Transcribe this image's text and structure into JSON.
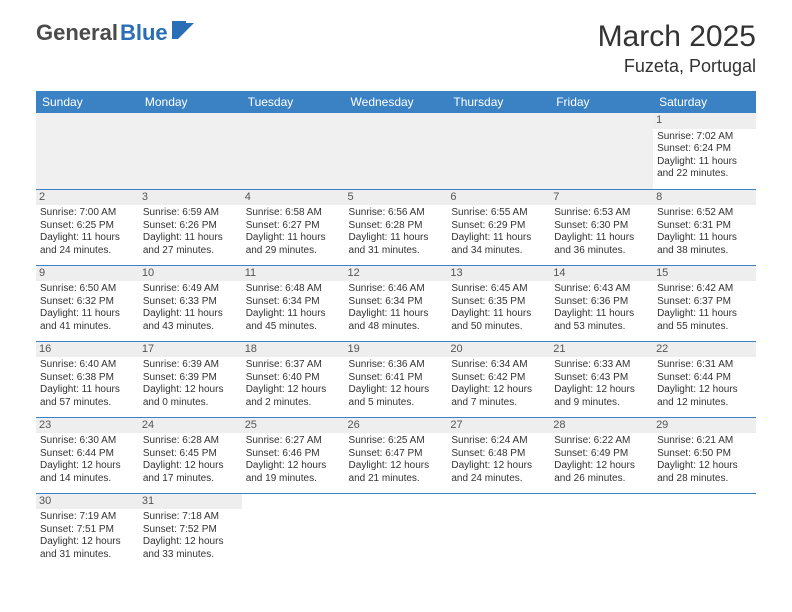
{
  "logo": {
    "part1": "General",
    "part2": "Blue"
  },
  "title": "March 2025",
  "location": "Fuzeta, Portugal",
  "colors": {
    "header_bg": "#3b82c4",
    "header_text": "#ffffff",
    "daynum_bg": "#eeeeee",
    "border": "#3b82c4",
    "logo_gray": "#4a4a4a",
    "logo_blue": "#2a6fb5"
  },
  "typography": {
    "title_fontsize": 30,
    "location_fontsize": 18,
    "day_header_fontsize": 12,
    "cell_fontsize": 10
  },
  "day_headers": [
    "Sunday",
    "Monday",
    "Tuesday",
    "Wednesday",
    "Thursday",
    "Friday",
    "Saturday"
  ],
  "weeks": [
    [
      null,
      null,
      null,
      null,
      null,
      null,
      {
        "n": "1",
        "sr": "Sunrise: 7:02 AM",
        "ss": "Sunset: 6:24 PM",
        "d1": "Daylight: 11 hours",
        "d2": "and 22 minutes."
      }
    ],
    [
      {
        "n": "2",
        "sr": "Sunrise: 7:00 AM",
        "ss": "Sunset: 6:25 PM",
        "d1": "Daylight: 11 hours",
        "d2": "and 24 minutes."
      },
      {
        "n": "3",
        "sr": "Sunrise: 6:59 AM",
        "ss": "Sunset: 6:26 PM",
        "d1": "Daylight: 11 hours",
        "d2": "and 27 minutes."
      },
      {
        "n": "4",
        "sr": "Sunrise: 6:58 AM",
        "ss": "Sunset: 6:27 PM",
        "d1": "Daylight: 11 hours",
        "d2": "and 29 minutes."
      },
      {
        "n": "5",
        "sr": "Sunrise: 6:56 AM",
        "ss": "Sunset: 6:28 PM",
        "d1": "Daylight: 11 hours",
        "d2": "and 31 minutes."
      },
      {
        "n": "6",
        "sr": "Sunrise: 6:55 AM",
        "ss": "Sunset: 6:29 PM",
        "d1": "Daylight: 11 hours",
        "d2": "and 34 minutes."
      },
      {
        "n": "7",
        "sr": "Sunrise: 6:53 AM",
        "ss": "Sunset: 6:30 PM",
        "d1": "Daylight: 11 hours",
        "d2": "and 36 minutes."
      },
      {
        "n": "8",
        "sr": "Sunrise: 6:52 AM",
        "ss": "Sunset: 6:31 PM",
        "d1": "Daylight: 11 hours",
        "d2": "and 38 minutes."
      }
    ],
    [
      {
        "n": "9",
        "sr": "Sunrise: 6:50 AM",
        "ss": "Sunset: 6:32 PM",
        "d1": "Daylight: 11 hours",
        "d2": "and 41 minutes."
      },
      {
        "n": "10",
        "sr": "Sunrise: 6:49 AM",
        "ss": "Sunset: 6:33 PM",
        "d1": "Daylight: 11 hours",
        "d2": "and 43 minutes."
      },
      {
        "n": "11",
        "sr": "Sunrise: 6:48 AM",
        "ss": "Sunset: 6:34 PM",
        "d1": "Daylight: 11 hours",
        "d2": "and 45 minutes."
      },
      {
        "n": "12",
        "sr": "Sunrise: 6:46 AM",
        "ss": "Sunset: 6:34 PM",
        "d1": "Daylight: 11 hours",
        "d2": "and 48 minutes."
      },
      {
        "n": "13",
        "sr": "Sunrise: 6:45 AM",
        "ss": "Sunset: 6:35 PM",
        "d1": "Daylight: 11 hours",
        "d2": "and 50 minutes."
      },
      {
        "n": "14",
        "sr": "Sunrise: 6:43 AM",
        "ss": "Sunset: 6:36 PM",
        "d1": "Daylight: 11 hours",
        "d2": "and 53 minutes."
      },
      {
        "n": "15",
        "sr": "Sunrise: 6:42 AM",
        "ss": "Sunset: 6:37 PM",
        "d1": "Daylight: 11 hours",
        "d2": "and 55 minutes."
      }
    ],
    [
      {
        "n": "16",
        "sr": "Sunrise: 6:40 AM",
        "ss": "Sunset: 6:38 PM",
        "d1": "Daylight: 11 hours",
        "d2": "and 57 minutes."
      },
      {
        "n": "17",
        "sr": "Sunrise: 6:39 AM",
        "ss": "Sunset: 6:39 PM",
        "d1": "Daylight: 12 hours",
        "d2": "and 0 minutes."
      },
      {
        "n": "18",
        "sr": "Sunrise: 6:37 AM",
        "ss": "Sunset: 6:40 PM",
        "d1": "Daylight: 12 hours",
        "d2": "and 2 minutes."
      },
      {
        "n": "19",
        "sr": "Sunrise: 6:36 AM",
        "ss": "Sunset: 6:41 PM",
        "d1": "Daylight: 12 hours",
        "d2": "and 5 minutes."
      },
      {
        "n": "20",
        "sr": "Sunrise: 6:34 AM",
        "ss": "Sunset: 6:42 PM",
        "d1": "Daylight: 12 hours",
        "d2": "and 7 minutes."
      },
      {
        "n": "21",
        "sr": "Sunrise: 6:33 AM",
        "ss": "Sunset: 6:43 PM",
        "d1": "Daylight: 12 hours",
        "d2": "and 9 minutes."
      },
      {
        "n": "22",
        "sr": "Sunrise: 6:31 AM",
        "ss": "Sunset: 6:44 PM",
        "d1": "Daylight: 12 hours",
        "d2": "and 12 minutes."
      }
    ],
    [
      {
        "n": "23",
        "sr": "Sunrise: 6:30 AM",
        "ss": "Sunset: 6:44 PM",
        "d1": "Daylight: 12 hours",
        "d2": "and 14 minutes."
      },
      {
        "n": "24",
        "sr": "Sunrise: 6:28 AM",
        "ss": "Sunset: 6:45 PM",
        "d1": "Daylight: 12 hours",
        "d2": "and 17 minutes."
      },
      {
        "n": "25",
        "sr": "Sunrise: 6:27 AM",
        "ss": "Sunset: 6:46 PM",
        "d1": "Daylight: 12 hours",
        "d2": "and 19 minutes."
      },
      {
        "n": "26",
        "sr": "Sunrise: 6:25 AM",
        "ss": "Sunset: 6:47 PM",
        "d1": "Daylight: 12 hours",
        "d2": "and 21 minutes."
      },
      {
        "n": "27",
        "sr": "Sunrise: 6:24 AM",
        "ss": "Sunset: 6:48 PM",
        "d1": "Daylight: 12 hours",
        "d2": "and 24 minutes."
      },
      {
        "n": "28",
        "sr": "Sunrise: 6:22 AM",
        "ss": "Sunset: 6:49 PM",
        "d1": "Daylight: 12 hours",
        "d2": "and 26 minutes."
      },
      {
        "n": "29",
        "sr": "Sunrise: 6:21 AM",
        "ss": "Sunset: 6:50 PM",
        "d1": "Daylight: 12 hours",
        "d2": "and 28 minutes."
      }
    ],
    [
      {
        "n": "30",
        "sr": "Sunrise: 7:19 AM",
        "ss": "Sunset: 7:51 PM",
        "d1": "Daylight: 12 hours",
        "d2": "and 31 minutes."
      },
      {
        "n": "31",
        "sr": "Sunrise: 7:18 AM",
        "ss": "Sunset: 7:52 PM",
        "d1": "Daylight: 12 hours",
        "d2": "and 33 minutes."
      },
      null,
      null,
      null,
      null,
      null
    ]
  ]
}
